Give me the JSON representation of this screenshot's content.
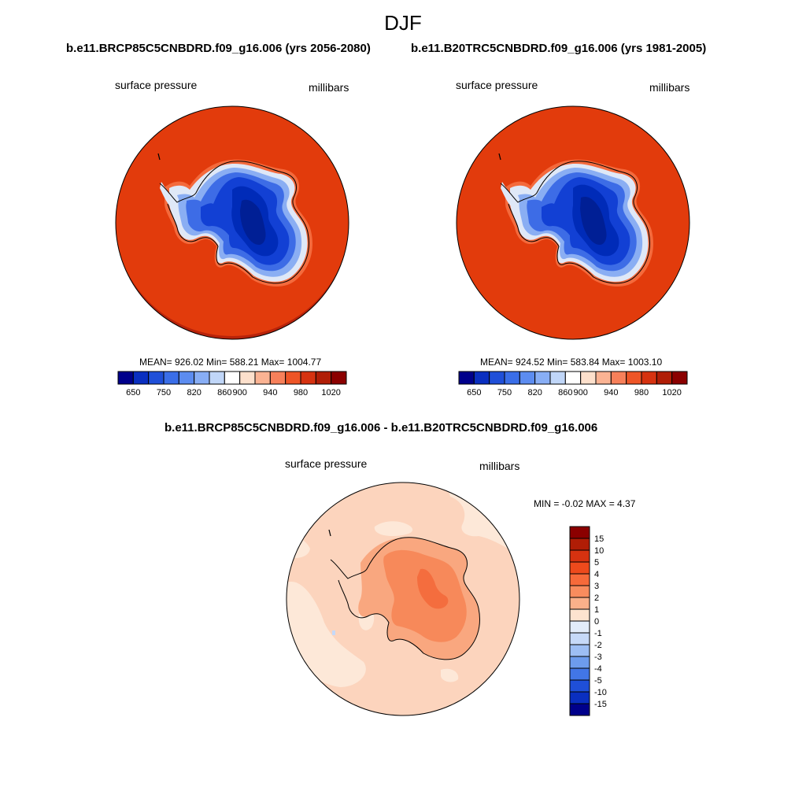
{
  "figure": {
    "title": "DJF"
  },
  "panels": {
    "left": {
      "case_title": "b.e11.BRCP85C5CNBDRD.f09_g16.006 (yrs 2056-2080)",
      "variable": "surface pressure",
      "units": "millibars",
      "stats": "MEAN= 926.02  Min= 588.21  Max= 1004.77"
    },
    "right": {
      "case_title": "b.e11.B20TRC5CNBDRD.f09_g16.006 (yrs 1981-2005)",
      "variable": "surface pressure",
      "units": "millibars",
      "stats": "MEAN= 924.52  Min= 583.84  Max= 1003.10"
    },
    "diff": {
      "case_title": "b.e11.BRCP85C5CNBDRD.f09_g16.006 - b.e11.B20TRC5CNBDRD.f09_g16.006",
      "variable": "surface pressure",
      "units": "millibars",
      "stats": "MIN =  -0.02 MAX =   4.37"
    }
  },
  "colorbars": {
    "absolute": {
      "labels": [
        "650",
        "750",
        "820",
        "860",
        "900",
        "940",
        "980",
        "1020"
      ],
      "colors": [
        "#00008b",
        "#0a2fc0",
        "#1f4fd8",
        "#3a6ee8",
        "#5c8cf0",
        "#88aef5",
        "#c0d6f8",
        "#ffffff",
        "#fde0cc",
        "#fbb393",
        "#f7805a",
        "#ee5527",
        "#d63210",
        "#b01d06",
        "#8b0000"
      ]
    },
    "difference": {
      "labels": [
        "15",
        "10",
        "5",
        "4",
        "3",
        "2",
        "1",
        "0",
        "-1",
        "-2",
        "-3",
        "-4",
        "-5",
        "-10",
        "-15"
      ],
      "colors": [
        "#8b0000",
        "#b01d06",
        "#d63210",
        "#ee4a1c",
        "#f76a3a",
        "#f98c5e",
        "#fbb08a",
        "#fde3cf",
        "#e2ecfa",
        "#c6d9f8",
        "#9dbef4",
        "#6d9ced",
        "#4276e6",
        "#1f4fd8",
        "#0a2fc0",
        "#00008b"
      ]
    }
  },
  "map_colors": {
    "ocean_absolute": "#e23b0c",
    "rim_absolute": "#b8230a",
    "ice_levels": [
      "#f46a3c",
      "#dfe8f7",
      "#8aaef3",
      "#3d6ce6",
      "#1240d4",
      "#002bb8",
      "#001f95"
    ],
    "diff_background": "#fcd4bd",
    "diff_light": "#fde8d8",
    "diff_levels": [
      "#f9a77f",
      "#f7895a",
      "#f46d3e"
    ]
  }
}
